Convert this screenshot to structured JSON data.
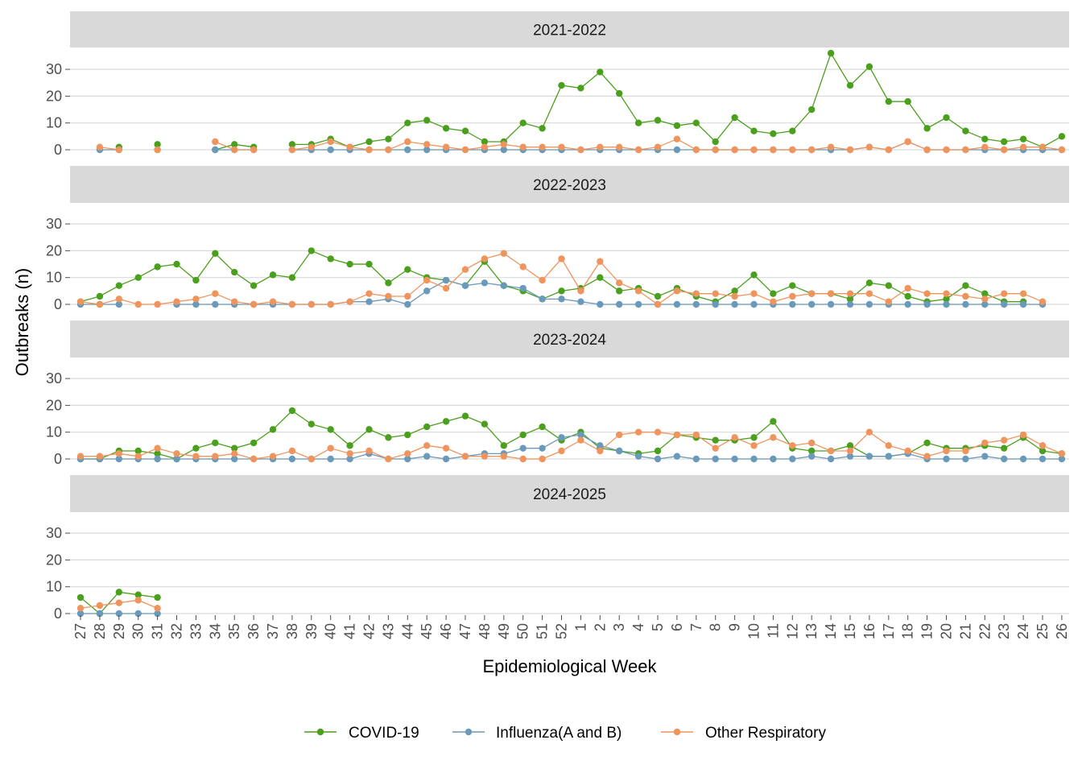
{
  "chart_data": {
    "type": "line",
    "xlabel": "Epidemiological Week",
    "ylabel": "Outbreaks (n)",
    "ylim": [
      0,
      37
    ],
    "yticks": [
      0,
      10,
      20,
      30
    ],
    "grid": true,
    "legend_position": "bottom",
    "x": [
      "27",
      "28",
      "29",
      "30",
      "31",
      "32",
      "33",
      "34",
      "35",
      "36",
      "37",
      "38",
      "39",
      "40",
      "41",
      "42",
      "43",
      "44",
      "45",
      "46",
      "47",
      "48",
      "49",
      "50",
      "51",
      "52",
      "1",
      "2",
      "3",
      "4",
      "5",
      "6",
      "7",
      "8",
      "9",
      "10",
      "11",
      "12",
      "13",
      "14",
      "15",
      "16",
      "17",
      "18",
      "19",
      "20",
      "21",
      "22",
      "23",
      "24",
      "25",
      "26"
    ],
    "series_info": [
      {
        "name": "COVID-19",
        "color": "#4aa01c"
      },
      {
        "name": "Influenza(A and B)",
        "color": "#6a99b9"
      },
      {
        "name": "Other Respiratory",
        "color": "#f0945e"
      }
    ],
    "panels": [
      {
        "title": "2021-2022",
        "series": [
          {
            "name": "COVID-19",
            "values": [
              null,
              null,
              1,
              null,
              2,
              null,
              null,
              0,
              2,
              1,
              null,
              2,
              2,
              4,
              1,
              3,
              4,
              10,
              11,
              8,
              7,
              3,
              3,
              10,
              8,
              24,
              23,
              29,
              21,
              10,
              11,
              9,
              10,
              3,
              12,
              7,
              6,
              7,
              15,
              36,
              24,
              31,
              18,
              18,
              8,
              12,
              7,
              4,
              3,
              4,
              1,
              5
            ]
          },
          {
            "name": "Influenza(A and B)",
            "values": [
              null,
              0,
              0,
              null,
              0,
              null,
              null,
              0,
              0,
              0,
              null,
              0,
              0,
              0,
              0,
              0,
              0,
              0,
              0,
              0,
              0,
              0,
              0,
              0,
              0,
              0,
              0,
              0,
              0,
              0,
              0,
              0,
              0,
              0,
              0,
              0,
              0,
              0,
              0,
              0,
              0,
              1,
              0,
              3,
              0,
              0,
              0,
              0,
              0,
              0,
              0,
              0
            ]
          },
          {
            "name": "Other Respiratory",
            "values": [
              null,
              1,
              0,
              null,
              0,
              null,
              null,
              3,
              0,
              0,
              null,
              0,
              1,
              3,
              1,
              0,
              0,
              3,
              2,
              1,
              0,
              1,
              2,
              1,
              1,
              1,
              0,
              1,
              1,
              0,
              1,
              4,
              0,
              0,
              0,
              0,
              0,
              0,
              0,
              1,
              0,
              1,
              0,
              3,
              0,
              0,
              0,
              1,
              0,
              1,
              1,
              0
            ]
          }
        ]
      },
      {
        "title": "2022-2023",
        "series": [
          {
            "name": "COVID-19",
            "values": [
              1,
              3,
              7,
              10,
              14,
              15,
              9,
              19,
              12,
              7,
              11,
              10,
              20,
              17,
              15,
              15,
              8,
              13,
              10,
              9,
              7,
              16,
              7,
              5,
              2,
              5,
              6,
              10,
              5,
              6,
              3,
              6,
              3,
              1,
              5,
              11,
              4,
              7,
              4,
              4,
              2,
              8,
              7,
              3,
              1,
              2,
              7,
              4,
              1,
              1,
              null,
              null
            ]
          },
          {
            "name": "Influenza(A and B)",
            "values": [
              0,
              0,
              0,
              null,
              null,
              0,
              0,
              0,
              0,
              0,
              0,
              0,
              0,
              0,
              1,
              1,
              2,
              0,
              5,
              9,
              7,
              8,
              7,
              6,
              2,
              2,
              1,
              0,
              0,
              0,
              0,
              0,
              0,
              0,
              0,
              0,
              0,
              0,
              0,
              0,
              0,
              0,
              0,
              0,
              0,
              0,
              0,
              0,
              0,
              0,
              0,
              null
            ]
          },
          {
            "name": "Other Respiratory",
            "values": [
              1,
              0,
              2,
              0,
              0,
              1,
              2,
              4,
              1,
              0,
              1,
              0,
              0,
              0,
              1,
              4,
              3,
              3,
              9,
              6,
              13,
              17,
              19,
              14,
              9,
              17,
              5,
              16,
              8,
              5,
              0,
              5,
              4,
              4,
              3,
              4,
              1,
              3,
              4,
              4,
              4,
              4,
              1,
              6,
              4,
              4,
              3,
              2,
              4,
              4,
              1,
              null
            ]
          }
        ]
      },
      {
        "title": "2023-2024",
        "series": [
          {
            "name": "COVID-19",
            "values": [
              0,
              0,
              3,
              3,
              2,
              0,
              4,
              6,
              4,
              6,
              11,
              18,
              13,
              11,
              5,
              11,
              8,
              9,
              12,
              14,
              16,
              13,
              5,
              9,
              12,
              7,
              10,
              4,
              3,
              2,
              3,
              9,
              8,
              7,
              7,
              8,
              14,
              4,
              3,
              3,
              5,
              1,
              1,
              2,
              6,
              4,
              4,
              5,
              4,
              8,
              3,
              2
            ]
          },
          {
            "name": "Influenza(A and B)",
            "values": [
              0,
              0,
              0,
              0,
              0,
              0,
              0,
              0,
              0,
              0,
              0,
              0,
              0,
              0,
              0,
              2,
              0,
              0,
              1,
              0,
              1,
              2,
              2,
              4,
              4,
              8,
              9,
              5,
              3,
              1,
              0,
              1,
              0,
              0,
              0,
              0,
              0,
              0,
              1,
              0,
              1,
              1,
              1,
              2,
              0,
              0,
              0,
              1,
              0,
              0,
              0,
              0
            ]
          },
          {
            "name": "Other Respiratory",
            "values": [
              1,
              1,
              2,
              1,
              4,
              2,
              1,
              1,
              2,
              0,
              1,
              3,
              0,
              4,
              2,
              3,
              0,
              2,
              5,
              4,
              1,
              1,
              1,
              0,
              0,
              3,
              7,
              3,
              9,
              10,
              10,
              9,
              9,
              4,
              8,
              5,
              8,
              5,
              6,
              3,
              3,
              10,
              5,
              3,
              1,
              3,
              3,
              6,
              7,
              9,
              5,
              2
            ]
          }
        ]
      },
      {
        "title": "2024-2025",
        "series": [
          {
            "name": "COVID-19",
            "values": [
              6,
              0,
              8,
              7,
              6,
              null,
              null,
              null,
              null,
              null,
              null,
              null,
              null,
              null,
              null,
              null,
              null,
              null,
              null,
              null,
              null,
              null,
              null,
              null,
              null,
              null,
              null,
              null,
              null,
              null,
              null,
              null,
              null,
              null,
              null,
              null,
              null,
              null,
              null,
              null,
              null,
              null,
              null,
              null,
              null,
              null,
              null,
              null,
              null,
              null,
              null,
              null
            ]
          },
          {
            "name": "Influenza(A and B)",
            "values": [
              0,
              0,
              0,
              0,
              0,
              null,
              null,
              null,
              null,
              null,
              null,
              null,
              null,
              null,
              null,
              null,
              null,
              null,
              null,
              null,
              null,
              null,
              null,
              null,
              null,
              null,
              null,
              null,
              null,
              null,
              null,
              null,
              null,
              null,
              null,
              null,
              null,
              null,
              null,
              null,
              null,
              null,
              null,
              null,
              null,
              null,
              null,
              null,
              null,
              null,
              null,
              null
            ]
          },
          {
            "name": "Other Respiratory",
            "values": [
              2,
              3,
              4,
              5,
              2,
              null,
              null,
              null,
              null,
              null,
              null,
              null,
              null,
              null,
              null,
              null,
              null,
              null,
              null,
              null,
              null,
              null,
              null,
              null,
              null,
              null,
              null,
              null,
              null,
              null,
              null,
              null,
              null,
              null,
              null,
              null,
              null,
              null,
              null,
              null,
              null,
              null,
              null,
              null,
              null,
              null,
              null,
              null,
              null,
              null,
              null,
              null
            ]
          }
        ]
      }
    ]
  }
}
